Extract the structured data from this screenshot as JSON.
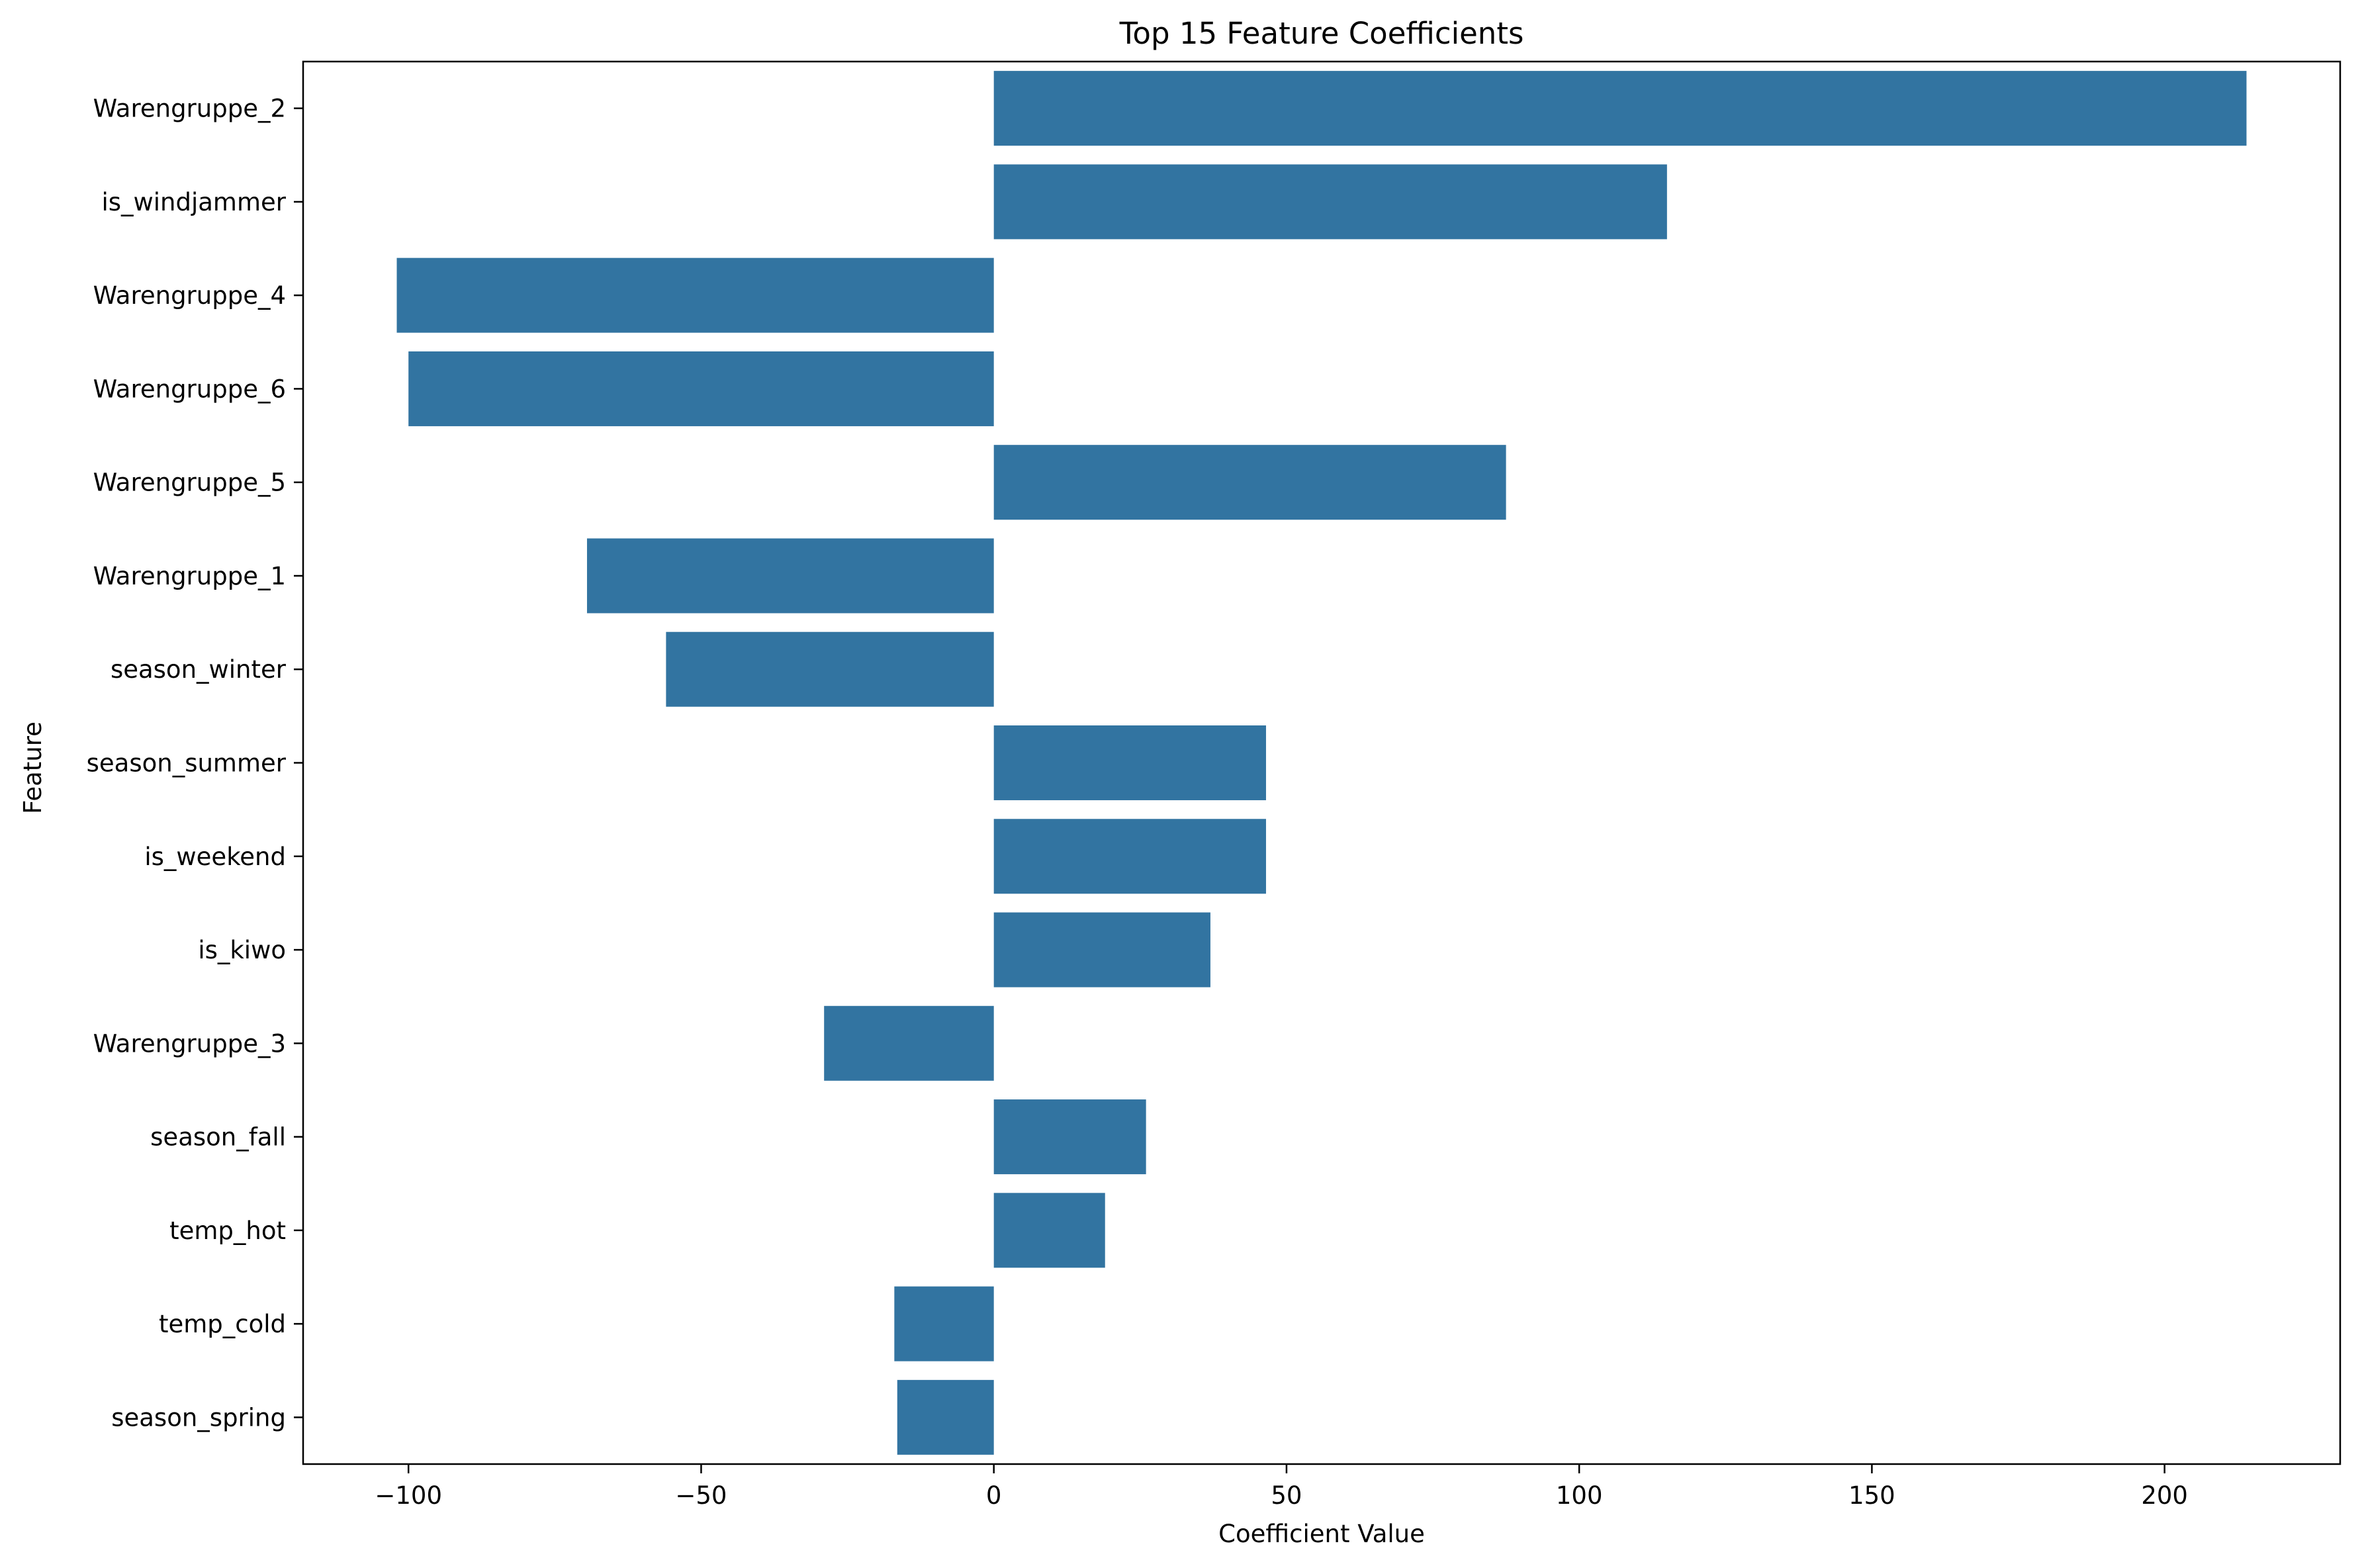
{
  "chart_data": {
    "type": "bar",
    "orientation": "horizontal",
    "title": "Top 15 Feature Coefficients",
    "xlabel": "Coefficient Value",
    "ylabel": "Feature",
    "xlim": [
      -118,
      230
    ],
    "xticks": [
      -100,
      -50,
      0,
      50,
      100,
      150,
      200
    ],
    "xtick_labels": [
      "−100",
      "−50",
      "0",
      "50",
      "100",
      "150",
      "200"
    ],
    "grid": false,
    "legend": "none",
    "bar_color": "#3274a1",
    "categories": [
      "Warengruppe_2",
      "is_windjammer",
      "Warengruppe_4",
      "Warengruppe_6",
      "Warengruppe_5",
      "Warengruppe_1",
      "season_winter",
      "season_summer",
      "is_weekend",
      "is_kiwo",
      "Warengruppe_3",
      "season_fall",
      "temp_hot",
      "temp_cold",
      "season_spring"
    ],
    "values": [
      214,
      115,
      -102,
      -100,
      87.5,
      -69.5,
      -56,
      46.5,
      46.5,
      37,
      -29,
      26,
      19,
      -17,
      -16.5
    ]
  }
}
